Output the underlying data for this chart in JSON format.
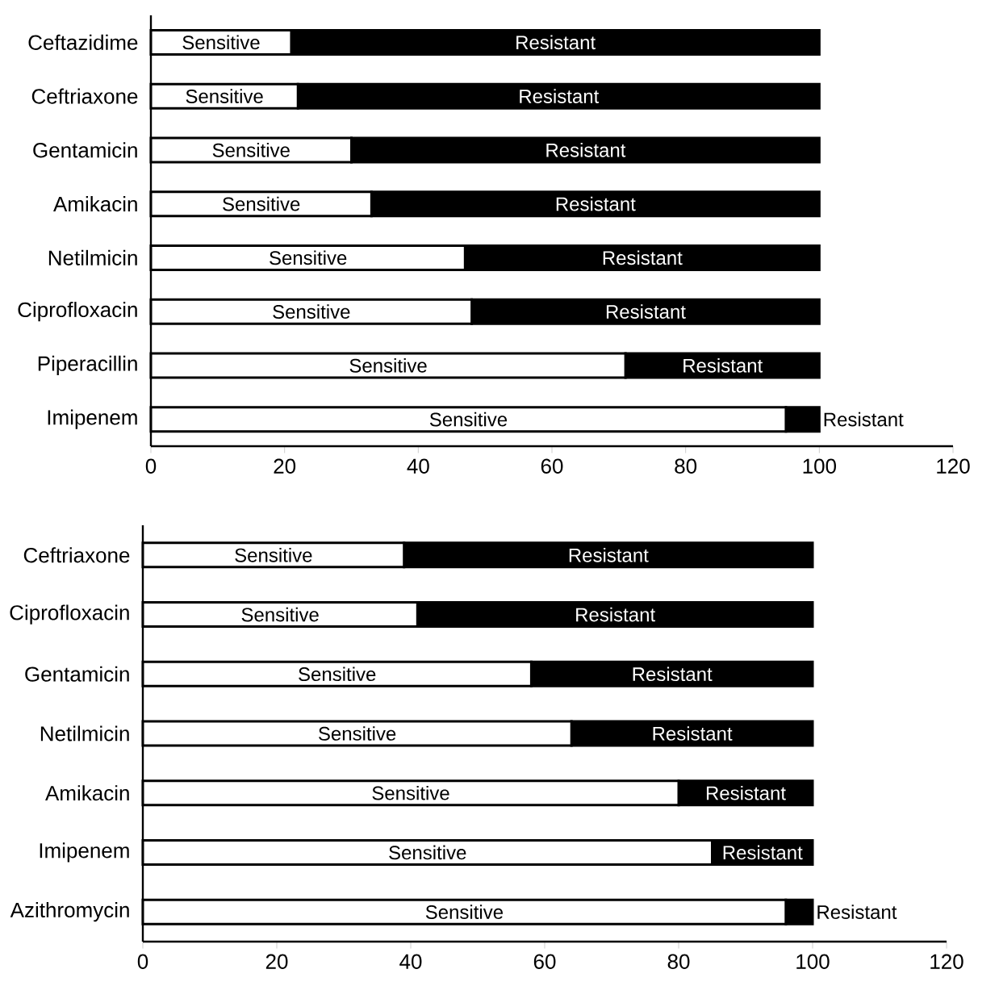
{
  "chart_data": [
    {
      "type": "bar",
      "orientation": "horizontal",
      "stacked": true,
      "categories": [
        "Ceftazidime",
        "Ceftriaxone",
        "Gentamicin",
        "Amikacin",
        "Netilmicin",
        "Ciprofloxacin",
        "Piperacillin",
        "Imipenem"
      ],
      "series": [
        {
          "name": "Sensitive",
          "color": "#ffffff",
          "values": [
            21,
            22,
            30,
            33,
            47,
            48,
            71,
            95
          ]
        },
        {
          "name": "Resistant",
          "color": "#000000",
          "values": [
            79,
            78,
            70,
            67,
            53,
            52,
            29,
            5
          ]
        }
      ],
      "xlim": [
        0,
        120
      ],
      "xticks": [
        0,
        20,
        40,
        60,
        80,
        100,
        120
      ]
    },
    {
      "type": "bar",
      "orientation": "horizontal",
      "stacked": true,
      "categories": [
        "Ceftriaxone",
        "Ciprofloxacin",
        "Gentamicin",
        "Netilmicin",
        "Amikacin",
        "Imipenem",
        "Azithromycin"
      ],
      "series": [
        {
          "name": "Sensitive",
          "color": "#ffffff",
          "values": [
            39,
            41,
            58,
            64,
            80,
            85,
            96
          ]
        },
        {
          "name": "Resistant",
          "color": "#000000",
          "values": [
            61,
            59,
            42,
            36,
            20,
            15,
            4
          ]
        }
      ],
      "xlim": [
        0,
        120
      ],
      "xticks": [
        0,
        20,
        40,
        60,
        80,
        100,
        120
      ]
    }
  ]
}
